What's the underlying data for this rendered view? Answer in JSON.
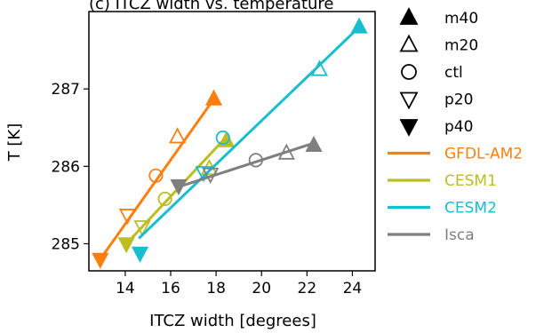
{
  "chart_data": {
    "type": "scatter",
    "title": "(c) ITCZ width vs. temperature",
    "xlabel": "ITCZ width [degrees]",
    "ylabel": "T [K]",
    "xlim": [
      12.4,
      25.0
    ],
    "ylim": [
      284.65,
      288.0
    ],
    "xticks": [
      14,
      16,
      18,
      20,
      22,
      24
    ],
    "yticks": [
      285,
      286,
      287
    ],
    "grid": false,
    "legend_placement": "outside-right",
    "markers": [
      {
        "id": "m40",
        "label": "m40",
        "symbol": "triangle-up-filled"
      },
      {
        "id": "m20",
        "label": "m20",
        "symbol": "triangle-up-open"
      },
      {
        "id": "ctl",
        "label": "ctl",
        "symbol": "circle-open"
      },
      {
        "id": "p20",
        "label": "p20",
        "symbol": "triangle-down-open"
      },
      {
        "id": "p40",
        "label": "p40",
        "symbol": "triangle-down-filled"
      }
    ],
    "series": [
      {
        "name": "GFDL-AM2",
        "color": "#ff7f0e",
        "points": [
          {
            "marker": "m40",
            "x": 17.9,
            "y": 286.87
          },
          {
            "marker": "m20",
            "x": 16.3,
            "y": 286.38
          },
          {
            "marker": "ctl",
            "x": 15.35,
            "y": 285.88
          },
          {
            "marker": "p20",
            "x": 14.1,
            "y": 285.37
          },
          {
            "marker": "p40",
            "x": 12.9,
            "y": 284.8
          }
        ],
        "fit": {
          "x": [
            12.9,
            17.9
          ],
          "y": [
            284.8,
            286.87
          ]
        }
      },
      {
        "name": "CESM1",
        "color": "#bcbd22",
        "points": [
          {
            "marker": "m40",
            "x": 18.45,
            "y": 286.33
          },
          {
            "marker": "m20",
            "x": 17.7,
            "y": 285.97
          },
          {
            "marker": "ctl",
            "x": 15.75,
            "y": 285.58
          },
          {
            "marker": "p20",
            "x": 14.75,
            "y": 285.22
          },
          {
            "marker": "p40",
            "x": 14.05,
            "y": 285.0
          }
        ],
        "fit": {
          "x": [
            14.05,
            18.45
          ],
          "y": [
            285.0,
            286.38
          ]
        }
      },
      {
        "name": "CESM2",
        "color": "#17becf",
        "points": [
          {
            "marker": "m40",
            "x": 24.3,
            "y": 287.8
          },
          {
            "marker": "m20",
            "x": 22.55,
            "y": 287.25
          },
          {
            "marker": "ctl",
            "x": 18.3,
            "y": 286.37
          },
          {
            "marker": "p20",
            "x": 17.45,
            "y": 285.92
          },
          {
            "marker": "p40",
            "x": 14.65,
            "y": 284.88
          }
        ],
        "fit": {
          "x": [
            14.6,
            24.3
          ],
          "y": [
            285.07,
            287.8
          ]
        }
      },
      {
        "name": "Isca",
        "color": "#7f7f7f",
        "points": [
          {
            "marker": "m40",
            "x": 22.3,
            "y": 286.27
          },
          {
            "marker": "m20",
            "x": 21.1,
            "y": 286.17
          },
          {
            "marker": "ctl",
            "x": 19.75,
            "y": 286.08
          },
          {
            "marker": "p20",
            "x": 17.75,
            "y": 285.9
          },
          {
            "marker": "p40",
            "x": 16.35,
            "y": 285.75
          }
        ],
        "fit": {
          "x": [
            16.3,
            22.3
          ],
          "y": [
            285.73,
            286.3
          ]
        }
      }
    ]
  }
}
